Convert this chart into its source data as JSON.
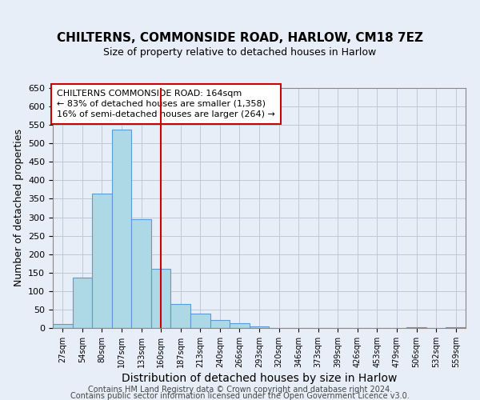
{
  "title": "CHILTERNS, COMMONSIDE ROAD, HARLOW, CM18 7EZ",
  "subtitle": "Size of property relative to detached houses in Harlow",
  "xlabel": "Distribution of detached houses by size in Harlow",
  "ylabel": "Number of detached properties",
  "bin_labels": [
    "27sqm",
    "54sqm",
    "80sqm",
    "107sqm",
    "133sqm",
    "160sqm",
    "187sqm",
    "213sqm",
    "240sqm",
    "266sqm",
    "293sqm",
    "320sqm",
    "346sqm",
    "373sqm",
    "399sqm",
    "426sqm",
    "453sqm",
    "479sqm",
    "506sqm",
    "532sqm",
    "559sqm"
  ],
  "bar_heights": [
    10,
    137,
    363,
    537,
    294,
    160,
    66,
    40,
    21,
    12,
    5,
    0,
    0,
    0,
    0,
    1,
    0,
    0,
    2,
    0,
    2
  ],
  "bar_color": "#add8e6",
  "bar_edge_color": "#5b9bd5",
  "vline_x": 5.0,
  "vline_color": "#cc0000",
  "annotation_line1": "CHILTERNS COMMONSIDE ROAD: 164sqm",
  "annotation_line2": "← 83% of detached houses are smaller (1,358)",
  "annotation_line3": "16% of semi-detached houses are larger (264) →",
  "ylim": [
    0,
    650
  ],
  "yticks": [
    0,
    50,
    100,
    150,
    200,
    250,
    300,
    350,
    400,
    450,
    500,
    550,
    600,
    650
  ],
  "footer_line1": "Contains HM Land Registry data © Crown copyright and database right 2024.",
  "footer_line2": "Contains public sector information licensed under the Open Government Licence v3.0.",
  "bg_color": "#e8eef8",
  "plot_bg_color": "#e8eef8",
  "title_bg_color": "#ffffff",
  "grid_color": "#c0c8d8",
  "title_fontsize": 11,
  "subtitle_fontsize": 9,
  "xlabel_fontsize": 10,
  "ylabel_fontsize": 9,
  "footer_fontsize": 7,
  "annotation_fontsize": 8
}
